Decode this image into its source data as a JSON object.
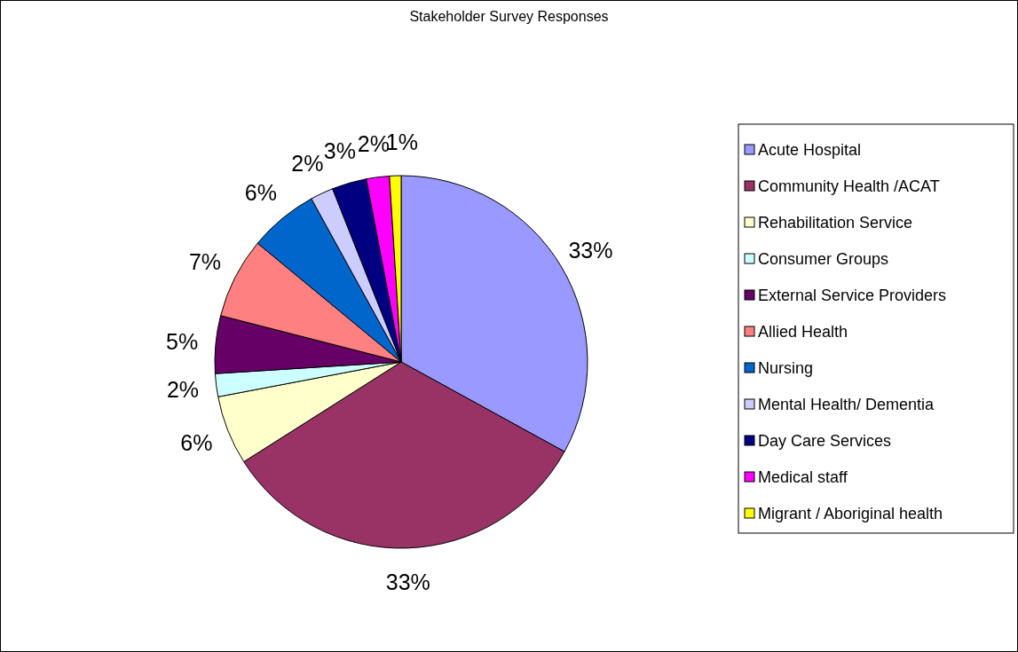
{
  "chart_data": {
    "type": "pie",
    "title": "Stakeholder Survey Responses",
    "categories": [
      "Acute Hospital",
      "Community Health /ACAT",
      "Rehabilitation Service",
      "Consumer Groups",
      "External Service Providers",
      "Allied Health",
      "Nursing",
      "Mental Health/ Dementia",
      "Day Care Services",
      "Medical staff",
      "Migrant / Aboriginal health"
    ],
    "values": [
      33,
      33,
      6,
      2,
      5,
      7,
      6,
      2,
      3,
      2,
      1
    ],
    "value_labels": [
      "33%",
      "33%",
      "6%",
      "2%",
      "5%",
      "7%",
      "6%",
      "2%",
      "3%",
      "2%",
      "1%"
    ],
    "colors": [
      "#9999ff",
      "#993366",
      "#ffffcc",
      "#ccffff",
      "#660066",
      "#ff8080",
      "#0066cc",
      "#ccccff",
      "#000080",
      "#ff00ff",
      "#ffff00"
    ],
    "legend": "right"
  }
}
